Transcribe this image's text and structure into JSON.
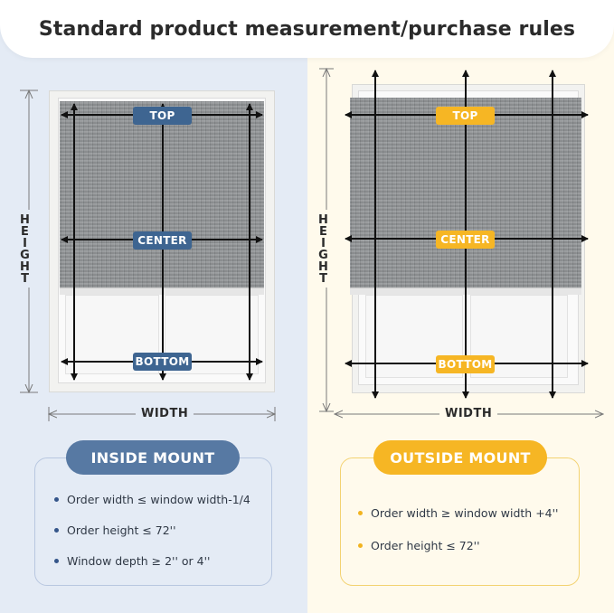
{
  "header": {
    "title": "Standard product measurement/purchase rules"
  },
  "inside": {
    "tags": {
      "top": "TOP",
      "center": "CENTER",
      "bottom": "BOTTOM"
    },
    "height_label": "HEIGHT",
    "width_label": "WIDTH",
    "mount_label": "INSIDE MOUNT",
    "rules": [
      "Order width ≤ window width-1/4",
      "Order height ≤ 72''",
      "Window depth ≥ 2'' or 4''"
    ],
    "accent_color": "#5779a3"
  },
  "outside": {
    "tags": {
      "top": "TOP",
      "center": "CENTER",
      "bottom": "BOTTOM"
    },
    "height_label": "HEIGHT",
    "width_label": "WIDTH",
    "mount_label": "OUTSIDE MOUNT",
    "rules": [
      "Order width ≥ window width +4''",
      "Order height ≤ 72''"
    ],
    "accent_color": "#f6b624"
  }
}
